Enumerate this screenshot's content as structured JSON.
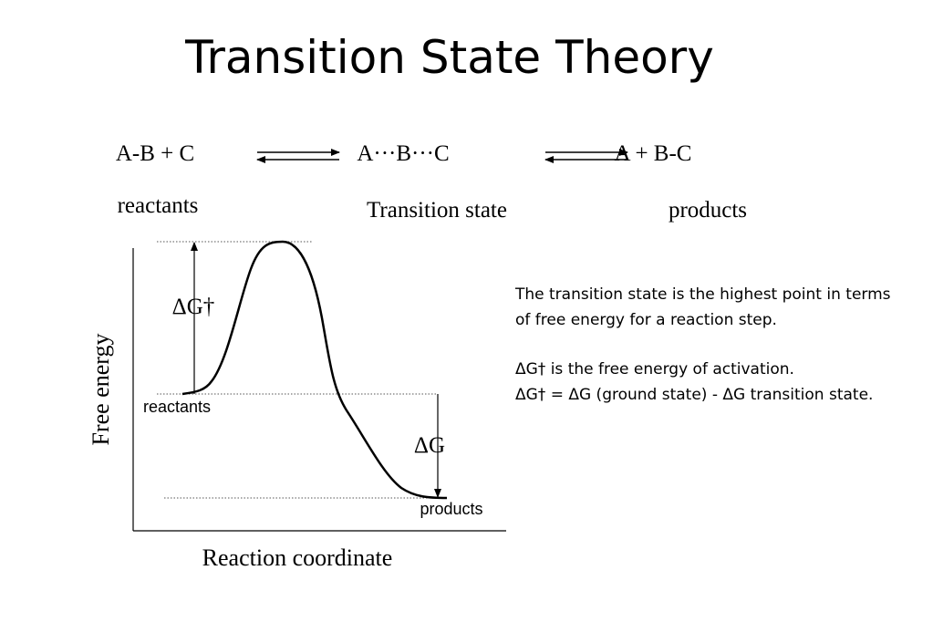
{
  "title": "Transition State Theory",
  "equation": {
    "reactants": "A-B + C",
    "transition_state": "A···B···C",
    "products": "A + B-C"
  },
  "labels": {
    "reactants": "reactants",
    "transition_state": "Transition state",
    "products": "products"
  },
  "diagram": {
    "y_axis": "Free energy",
    "x_axis": "Reaction coordinate",
    "activation_label": "ΔG†",
    "delta_label": "ΔG",
    "reactants": "reactants",
    "products": "products"
  },
  "description": [
    "The transition state is the highest point in terms of free energy for a reaction step.",
    "ΔG† is the free energy of activation.",
    "ΔG† = ΔG (ground state) - ΔG transition state."
  ]
}
